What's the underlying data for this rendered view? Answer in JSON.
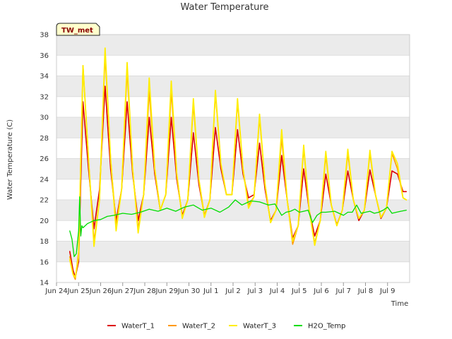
{
  "chart_data": {
    "type": "line",
    "title": "Water Temperature",
    "badge": "TW_met",
    "xlabel": "Time",
    "ylabel": "Water Temperature (C)",
    "ylim": [
      14,
      38
    ],
    "yticks": [
      14,
      16,
      18,
      20,
      22,
      24,
      26,
      28,
      30,
      32,
      34,
      36,
      38
    ],
    "xlim": [
      0,
      16
    ],
    "xticks": [
      {
        "x": 0,
        "label": "Jun 24"
      },
      {
        "x": 1,
        "label": "Jun 25"
      },
      {
        "x": 2,
        "label": "Jun 26"
      },
      {
        "x": 3,
        "label": "Jun 27"
      },
      {
        "x": 4,
        "label": "Jun 28"
      },
      {
        "x": 5,
        "label": "Jun 29"
      },
      {
        "x": 6,
        "label": "Jun 30"
      },
      {
        "x": 7,
        "label": "Jul 1"
      },
      {
        "x": 8,
        "label": "Jul 2"
      },
      {
        "x": 9,
        "label": "Jul 3"
      },
      {
        "x": 10,
        "label": "Jul 4"
      },
      {
        "x": 11,
        "label": "Jul 5"
      },
      {
        "x": 12,
        "label": "Jul 6"
      },
      {
        "x": 13,
        "label": "Jul 7"
      },
      {
        "x": 14,
        "label": "Jul 8"
      },
      {
        "x": 15,
        "label": "Jul 9"
      }
    ],
    "grid": true,
    "legend_position": "bottom",
    "series": [
      {
        "name": "WaterT_1",
        "color": "#dd0000",
        "width": 1.6,
        "x": [
          0.6,
          0.75,
          0.85,
          1.0,
          1.2,
          1.45,
          1.7,
          1.95,
          2.2,
          2.45,
          2.7,
          2.95,
          3.2,
          3.45,
          3.7,
          3.95,
          4.2,
          4.45,
          4.7,
          4.95,
          5.2,
          5.45,
          5.7,
          5.95,
          6.2,
          6.45,
          6.7,
          6.95,
          7.2,
          7.45,
          7.7,
          7.95,
          8.2,
          8.45,
          8.7,
          8.95,
          9.2,
          9.45,
          9.7,
          9.95,
          10.2,
          10.45,
          10.7,
          10.95,
          11.2,
          11.45,
          11.7,
          11.95,
          12.2,
          12.45,
          12.7,
          12.95,
          13.2,
          13.45,
          13.7,
          13.95,
          14.2,
          14.45,
          14.7,
          14.95,
          15.2,
          15.45,
          15.7,
          15.85
        ],
        "y": [
          17,
          15.2,
          14.5,
          16,
          31.5,
          25,
          19.2,
          23,
          33,
          25,
          20,
          23,
          31.5,
          24.5,
          20,
          22.5,
          30,
          24.5,
          21,
          22.5,
          30,
          24,
          20.5,
          22,
          28.5,
          23.5,
          20.5,
          22,
          29,
          25,
          22.5,
          22.5,
          28.8,
          24.5,
          22.2,
          22.5,
          27.5,
          23,
          20,
          21,
          26.3,
          22,
          18.3,
          19.5,
          25,
          21,
          18.5,
          20,
          24.5,
          21.5,
          19.6,
          21,
          24.8,
          22,
          20,
          21,
          24.9,
          22.5,
          20.2,
          21.2,
          24.8,
          24.5,
          22.8,
          22.8
        ]
      },
      {
        "name": "WaterT_2",
        "color": "#ff9900",
        "width": 1.6,
        "x": [
          0.6,
          0.75,
          0.85,
          1.0,
          1.2,
          1.45,
          1.7,
          1.95,
          2.2,
          2.45,
          2.7,
          2.95,
          3.2,
          3.45,
          3.7,
          3.95,
          4.2,
          4.45,
          4.7,
          4.95,
          5.2,
          5.45,
          5.7,
          5.95,
          6.2,
          6.45,
          6.7,
          6.95,
          7.2,
          7.45,
          7.7,
          7.95,
          8.2,
          8.45,
          8.7,
          8.95,
          9.2,
          9.45,
          9.7,
          9.95,
          10.2,
          10.45,
          10.7,
          10.95,
          11.2,
          11.45,
          11.7,
          11.95,
          12.2,
          12.45,
          12.7,
          12.95,
          13.2,
          13.45,
          13.7,
          13.95,
          14.2,
          14.45,
          14.7,
          14.95,
          15.2,
          15.45,
          15.7,
          15.85
        ],
        "y": [
          16.5,
          14.8,
          14.3,
          17,
          35,
          26,
          18,
          22,
          36,
          26,
          19.5,
          23,
          34.5,
          25,
          19.2,
          22.5,
          32.5,
          25,
          21,
          22.5,
          32.5,
          24.5,
          20.3,
          22,
          31.3,
          24,
          20.5,
          22,
          32.3,
          25.5,
          22.5,
          22.5,
          31.5,
          25,
          21.5,
          22.3,
          30,
          23.5,
          19.8,
          21,
          28,
          22,
          17.7,
          19.5,
          27,
          21,
          17.8,
          20,
          26.3,
          21.5,
          19.5,
          21,
          26.5,
          22,
          20.2,
          21,
          26.5,
          22.5,
          20.3,
          21.2,
          26.5,
          25,
          22.2,
          22
        ]
      },
      {
        "name": "WaterT_3",
        "color": "#ffee00",
        "width": 1.8,
        "x": [
          0.6,
          0.75,
          0.85,
          1.0,
          1.2,
          1.45,
          1.7,
          1.95,
          2.2,
          2.45,
          2.7,
          2.95,
          3.2,
          3.45,
          3.7,
          3.95,
          4.2,
          4.45,
          4.7,
          4.95,
          5.2,
          5.45,
          5.7,
          5.95,
          6.2,
          6.45,
          6.7,
          6.95,
          7.2,
          7.45,
          7.7,
          7.95,
          8.2,
          8.45,
          8.7,
          8.95,
          9.2,
          9.45,
          9.7,
          9.95,
          10.2,
          10.45,
          10.7,
          10.95,
          11.2,
          11.45,
          11.7,
          11.95,
          12.2,
          12.45,
          12.7,
          12.95,
          13.2,
          13.45,
          13.7,
          13.95,
          14.2,
          14.45,
          14.7,
          14.95,
          15.2,
          15.45,
          15.7,
          15.85
        ],
        "y": [
          16.2,
          14.8,
          14.5,
          16.5,
          35,
          26,
          17.5,
          22,
          36.7,
          26,
          19,
          23,
          35.3,
          25,
          18.8,
          22.5,
          33.8,
          25,
          21,
          22.5,
          33.5,
          24.5,
          20.2,
          22,
          31.8,
          24,
          20.3,
          22,
          32.6,
          25.5,
          22.5,
          22.5,
          31.8,
          25,
          21.2,
          22.3,
          30.3,
          23.5,
          19.8,
          21,
          28.8,
          22,
          18,
          19.5,
          27.3,
          21,
          17.6,
          20,
          26.7,
          21.5,
          19.5,
          21,
          26.9,
          22,
          20.2,
          21,
          26.8,
          22.5,
          20.3,
          21.2,
          26.7,
          25.5,
          22.2,
          22
        ]
      },
      {
        "name": "H2O_Temp",
        "color": "#00dd00",
        "width": 1.3,
        "x": [
          0.6,
          0.7,
          0.8,
          0.9,
          1.0,
          1.05,
          1.1,
          1.15,
          1.2,
          1.4,
          1.7,
          2.0,
          2.3,
          2.6,
          3.0,
          3.4,
          3.8,
          4.2,
          4.6,
          5.0,
          5.4,
          5.8,
          6.2,
          6.6,
          7.0,
          7.4,
          7.8,
          8.1,
          8.4,
          8.8,
          9.2,
          9.6,
          9.9,
          10.2,
          10.4,
          10.6,
          10.8,
          11.0,
          11.2,
          11.4,
          11.6,
          11.8,
          12.0,
          12.2,
          12.6,
          13.0,
          13.2,
          13.4,
          13.6,
          13.8,
          14.0,
          14.2,
          14.4,
          14.6,
          14.8,
          15.0,
          15.2,
          15.4,
          15.6,
          15.85
        ],
        "y": [
          19,
          18.2,
          16.5,
          16.8,
          19,
          22.3,
          18.5,
          19.5,
          19.3,
          19.7,
          20,
          20.1,
          20.4,
          20.5,
          20.7,
          20.6,
          20.8,
          21.1,
          20.9,
          21.2,
          20.9,
          21.3,
          21.5,
          21,
          21.2,
          20.8,
          21.3,
          22,
          21.5,
          21.9,
          21.8,
          21.5,
          21.6,
          20.5,
          20.8,
          20.9,
          21.1,
          20.8,
          20.9,
          21.0,
          19.8,
          20.5,
          20.8,
          20.8,
          20.9,
          20.5,
          20.8,
          20.8,
          21.5,
          20.7,
          20.8,
          20.9,
          20.7,
          20.8,
          21.0,
          21.3,
          20.7,
          20.8,
          20.9,
          21.0
        ]
      }
    ]
  },
  "colors": {
    "band": "#ebebeb",
    "plot_bg": "#ffffff",
    "grid": "#dddddd",
    "frame": "#cccccc",
    "badge_fill": "#ffffcc",
    "badge_text": "#8b0000"
  }
}
